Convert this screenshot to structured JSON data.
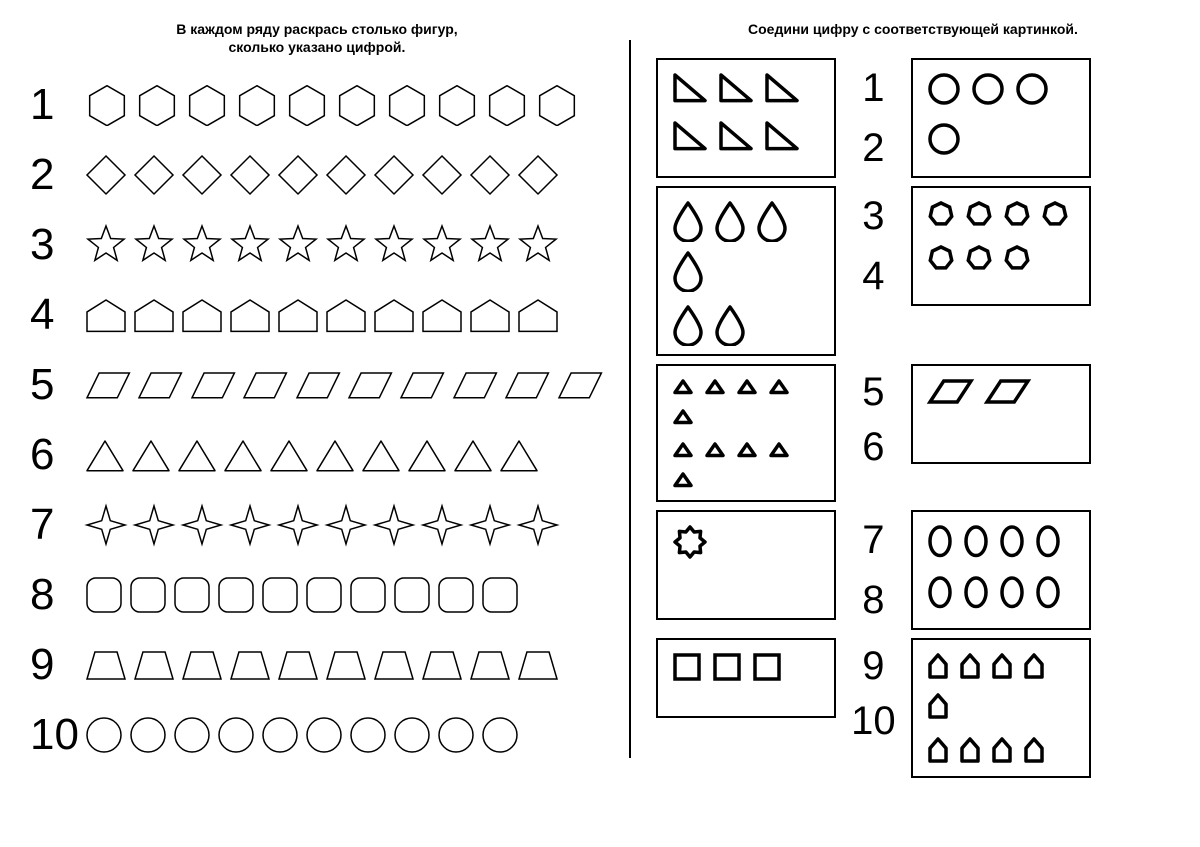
{
  "left": {
    "title": "В каждом ряду раскрась столько фигур,\nсколько указано цифрой.",
    "rows": [
      {
        "num": "1",
        "shape": "hexagon",
        "count": 10,
        "size": 46,
        "stroke": 1.5
      },
      {
        "num": "2",
        "shape": "diamond",
        "count": 10,
        "size": 44,
        "stroke": 1.5
      },
      {
        "num": "3",
        "shape": "star5",
        "count": 10,
        "size": 44,
        "stroke": 1.5
      },
      {
        "num": "4",
        "shape": "house",
        "count": 10,
        "size": 44,
        "stroke": 1.5
      },
      {
        "num": "5",
        "shape": "parallelogram",
        "count": 10,
        "size": 44,
        "stroke": 1.5
      },
      {
        "num": "6",
        "shape": "triangle",
        "count": 10,
        "size": 42,
        "stroke": 1.5
      },
      {
        "num": "7",
        "shape": "star4",
        "count": 10,
        "size": 44,
        "stroke": 1.5
      },
      {
        "num": "8",
        "shape": "roundsq",
        "count": 10,
        "size": 40,
        "stroke": 1.5
      },
      {
        "num": "9",
        "shape": "trapezoid",
        "count": 10,
        "size": 44,
        "stroke": 1.5
      },
      {
        "num": "10",
        "shape": "circle",
        "count": 10,
        "size": 40,
        "stroke": 1.5
      }
    ]
  },
  "right": {
    "title": "Соедини цифру с соответствующей картинкой.",
    "stroke_width": 3.5,
    "leftBoxes": [
      {
        "shape": "rtriangle",
        "count": 6,
        "perRowMax": 3,
        "size": 44
      },
      {
        "shape": "drop",
        "count": 6,
        "perRowMax": 4,
        "size": 40
      },
      {
        "shape": "triangle",
        "count": 10,
        "perRowMax": 5,
        "size": 30
      },
      {
        "shape": "cog",
        "count": 1,
        "perRowMax": 1,
        "size": 44
      },
      {
        "shape": "square",
        "count": 3,
        "perRowMax": 3,
        "size": 38
      }
    ],
    "rightBoxes": [
      {
        "shape": "circle",
        "count": 4,
        "perRowMax": 3,
        "size": 42
      },
      {
        "shape": "heptagon",
        "count": 7,
        "perRowMax": 4,
        "size": 36
      },
      {
        "shape": "parallelogram",
        "count": 2,
        "perRowMax": 2,
        "size": 50
      },
      {
        "shape": "ellipse",
        "count": 8,
        "perRowMax": 4,
        "size": 34
      },
      {
        "shape": "housetall",
        "count": 9,
        "perRowMax": 5,
        "size": 30
      }
    ],
    "numbers": [
      "1",
      "2",
      "3",
      "4",
      "5",
      "6",
      "7",
      "8",
      "9",
      "10"
    ],
    "leftBoxHeights": [
      120,
      120,
      110,
      110,
      80
    ],
    "rightBoxHeights": [
      120,
      120,
      100,
      120,
      110
    ]
  },
  "colors": {
    "stroke": "#000000",
    "fill": "#ffffff",
    "bg": "#ffffff"
  }
}
